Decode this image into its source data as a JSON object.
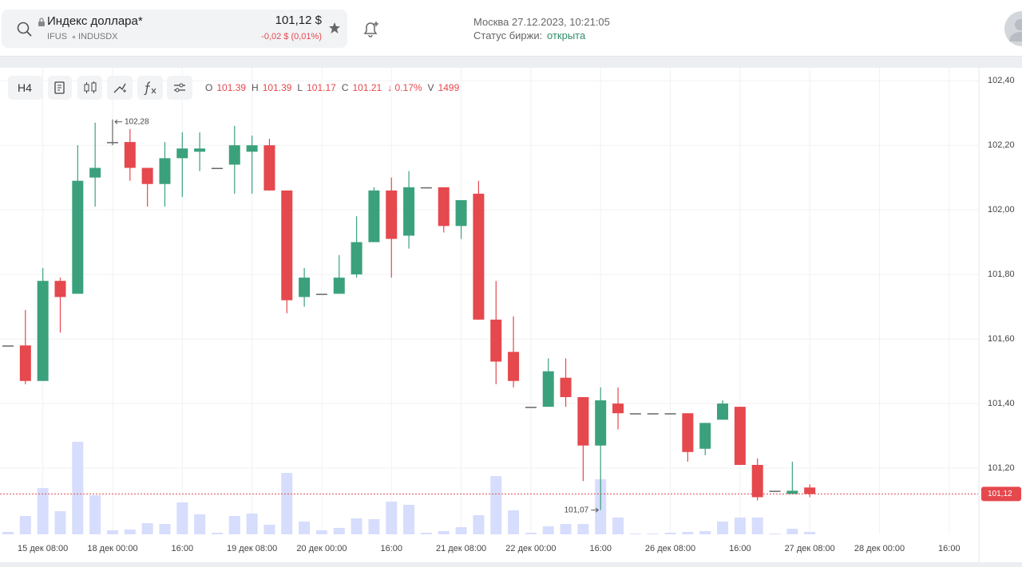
{
  "header": {
    "instrument": "Индекс доллара*",
    "exchange": "IFUS",
    "ticker": "INDUSDX",
    "price": "101,12 $",
    "change": "-0,02 $ (0,01%)",
    "datetime": "Москва 27.12.2023, 10:21:05",
    "status_label": "Статус биржи:",
    "status": "открыта"
  },
  "toolbar": {
    "interval": "H4"
  },
  "chart_data": {
    "type": "candlestick",
    "ohlc_legend": [
      {
        "key": "O",
        "value": "101.39"
      },
      {
        "key": "H",
        "value": "101.39"
      },
      {
        "key": "L",
        "value": "101.17"
      },
      {
        "key": "C",
        "value": "101.21"
      },
      {
        "key": "",
        "value": "↓ 0.17%"
      },
      {
        "key": "V",
        "value": "1499"
      }
    ],
    "categories": [
      null,
      null,
      "15 дек 08:00",
      null,
      null,
      null,
      "18 дек 00:00",
      null,
      null,
      null,
      "16:00",
      null,
      null,
      null,
      "19 дек 08:00",
      null,
      null,
      null,
      "20 дек 00:00",
      null,
      null,
      null,
      "16:00",
      null,
      null,
      null,
      "21 дек 08:00",
      null,
      null,
      null,
      "22 дек 00:00",
      null,
      null,
      null,
      "16:00",
      null,
      null,
      null,
      "26 дек 08:00",
      null,
      null,
      null,
      "16:00",
      null,
      null,
      null,
      "27 дек 08:00",
      null,
      null,
      null,
      "28 дек 00:00",
      null,
      null,
      null,
      "16:00"
    ],
    "open": [
      101.58,
      101.58,
      101.47,
      101.78,
      101.74,
      102.1,
      102.21,
      102.21,
      102.13,
      102.08,
      102.16,
      102.18,
      102.13,
      102.14,
      102.18,
      102.2,
      102.06,
      101.73,
      101.74,
      101.74,
      101.8,
      101.9,
      102.06,
      101.92,
      102.07,
      102.07,
      101.95,
      102.05,
      101.66,
      101.56,
      101.39,
      101.39,
      101.48,
      101.42,
      101.27,
      101.4,
      101.37,
      101.37,
      101.37,
      101.37,
      101.26,
      101.35,
      101.39,
      101.21,
      101.13,
      101.12,
      101.14,
      null,
      null,
      null,
      null,
      null,
      null,
      null,
      null
    ],
    "high": [
      101.58,
      101.69,
      101.82,
      101.79,
      102.2,
      102.27,
      102.28,
      102.25,
      102.13,
      102.21,
      102.24,
      102.24,
      102.13,
      102.26,
      102.23,
      102.22,
      102.06,
      101.82,
      101.74,
      101.86,
      101.98,
      102.07,
      102.1,
      102.12,
      102.07,
      102.07,
      102.03,
      102.09,
      101.78,
      101.67,
      101.39,
      101.54,
      101.54,
      101.42,
      101.45,
      101.45,
      101.37,
      101.37,
      101.37,
      101.37,
      101.34,
      101.41,
      101.39,
      101.23,
      101.13,
      101.22,
      101.15,
      null,
      null,
      null,
      null,
      null,
      null,
      null,
      null
    ],
    "low": [
      101.58,
      101.46,
      101.47,
      101.62,
      101.74,
      102.01,
      102.2,
      102.09,
      102.01,
      102.01,
      102.04,
      102.12,
      102.13,
      102.05,
      102.05,
      102.06,
      101.68,
      101.7,
      101.74,
      101.74,
      101.79,
      101.9,
      101.79,
      101.88,
      102.07,
      101.93,
      101.91,
      101.66,
      101.46,
      101.45,
      101.39,
      101.39,
      101.39,
      101.16,
      101.07,
      101.32,
      101.37,
      101.37,
      101.37,
      101.22,
      101.24,
      101.35,
      101.21,
      101.1,
      101.13,
      101.12,
      101.11,
      null,
      null,
      null,
      null,
      null,
      null,
      null,
      null
    ],
    "close": [
      101.58,
      101.47,
      101.78,
      101.73,
      102.09,
      102.13,
      102.21,
      102.13,
      102.08,
      102.16,
      102.19,
      102.19,
      102.13,
      102.2,
      102.2,
      102.06,
      101.72,
      101.79,
      101.74,
      101.79,
      101.9,
      102.06,
      101.91,
      102.07,
      102.07,
      101.95,
      102.03,
      101.66,
      101.53,
      101.47,
      101.39,
      101.5,
      101.42,
      101.27,
      101.41,
      101.37,
      101.37,
      101.37,
      101.37,
      101.25,
      101.34,
      101.4,
      101.21,
      101.11,
      101.13,
      101.13,
      101.12,
      null,
      null,
      null,
      null,
      null,
      null,
      null,
      null
    ],
    "volume": [
      3,
      23,
      58,
      29,
      116,
      49,
      5,
      6,
      14,
      13,
      40,
      25,
      2,
      23,
      26,
      12,
      77,
      16,
      5,
      8,
      20,
      19,
      41,
      37,
      2,
      4,
      9,
      24,
      73,
      30,
      2,
      10,
      13,
      13,
      69,
      21,
      1,
      1,
      2,
      3,
      4,
      16,
      21,
      21,
      1,
      7,
      3,
      null,
      null,
      null,
      null,
      null,
      null,
      null,
      null
    ],
    "up_color": "#3ba17c",
    "down_color": "#e5484d",
    "flat_color": "#666666",
    "volume_color": "#d7ddfc",
    "ylim": [
      101.0,
      102.44
    ],
    "yticks": [
      {
        "value": 101.2,
        "label": "101,20"
      },
      {
        "value": 101.4,
        "label": "101,40"
      },
      {
        "value": 101.6,
        "label": "101,60"
      },
      {
        "value": 101.8,
        "label": "101,80"
      },
      {
        "value": 102.0,
        "label": "102,00"
      },
      {
        "value": 102.2,
        "label": "102,20"
      },
      {
        "value": 102.4,
        "label": "102,40"
      }
    ],
    "grid": true,
    "current_price": {
      "value": 101.12,
      "label": "101,12"
    },
    "annotations": {
      "max": "102,28",
      "min": "101,07"
    }
  }
}
